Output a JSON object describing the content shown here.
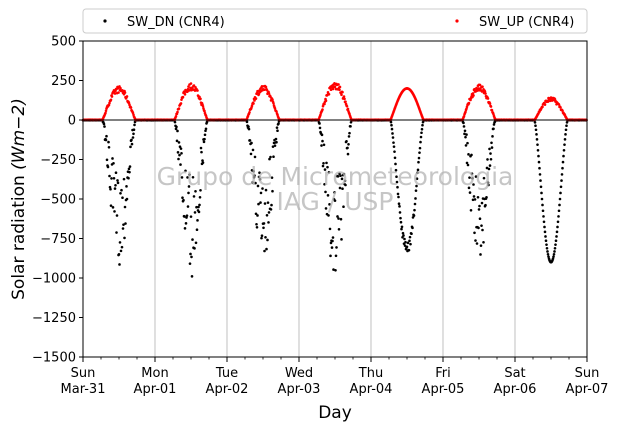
{
  "chart_data": {
    "type": "scatter",
    "xlabel": "Day",
    "ylabel": "Solar radiation",
    "ylabel_unit": "(Wm−2)",
    "ylim": [
      -1500,
      500
    ],
    "yticks": [
      500,
      250,
      0,
      -250,
      -500,
      -750,
      -1000,
      -1250,
      -1500
    ],
    "ytick_labels": [
      "500",
      "250",
      "0",
      "−250",
      "−500",
      "−750",
      "−1000",
      "−1250",
      "−1500"
    ],
    "xlim": [
      "2019-03-31",
      "2019-04-07"
    ],
    "xticks": [
      {
        "day": "Sun",
        "date": "Mar-31"
      },
      {
        "day": "Mon",
        "date": "Apr-01"
      },
      {
        "day": "Tue",
        "date": "Apr-02"
      },
      {
        "day": "Wed",
        "date": "Apr-03"
      },
      {
        "day": "Thu",
        "date": "Apr-04"
      },
      {
        "day": "Fri",
        "date": "Apr-05"
      },
      {
        "day": "Sat",
        "date": "Apr-06"
      },
      {
        "day": "Sun",
        "date": "Apr-07"
      }
    ],
    "grid": "vertical",
    "zero_line": true,
    "legend": {
      "placement": "top",
      "columns": 2
    },
    "watermark": [
      "Grupo de Micrometeorologia",
      "IAG / USP"
    ],
    "series": [
      {
        "name": "SW_DN (CNR4)",
        "color": "#000000",
        "daily_minimum": [
          {
            "date": "2019-03-31",
            "value": -920
          },
          {
            "date": "2019-04-01",
            "value": -1000
          },
          {
            "date": "2019-04-02",
            "value": -930
          },
          {
            "date": "2019-04-03",
            "value": -1040
          },
          {
            "date": "2019-04-04",
            "value": -850
          },
          {
            "date": "2019-04-05",
            "value": -930
          },
          {
            "date": "2019-04-06",
            "value": -900
          }
        ]
      },
      {
        "name": "SW_UP (CNR4)",
        "color": "#ff0000",
        "daily_maximum": [
          {
            "date": "2019-03-31",
            "value": 215
          },
          {
            "date": "2019-04-01",
            "value": 235
          },
          {
            "date": "2019-04-02",
            "value": 220
          },
          {
            "date": "2019-04-03",
            "value": 240
          },
          {
            "date": "2019-04-04",
            "value": 200
          },
          {
            "date": "2019-04-05",
            "value": 225
          },
          {
            "date": "2019-04-06",
            "value": 145
          }
        ]
      }
    ]
  }
}
